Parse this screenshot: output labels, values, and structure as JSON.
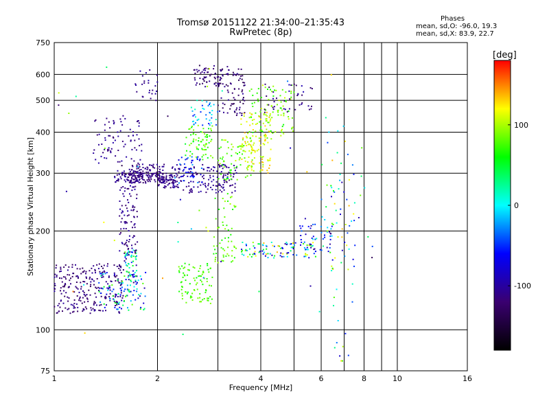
{
  "chart_data": {
    "type": "scatter",
    "title": "Tromsø 20151122 21:34:00–21:35:43",
    "subtitle": "RwPretec (8p)",
    "xlabel": "Frequency [MHz]",
    "ylabel": "Stationary phase Virtual Height [km]",
    "x_scale": "log",
    "y_scale": "log",
    "xlim": [
      1,
      16
    ],
    "ylim": [
      75,
      750
    ],
    "x_ticks": [
      1,
      2,
      4,
      6,
      8,
      10,
      16
    ],
    "y_ticks": [
      75,
      100,
      200,
      300,
      400,
      500,
      600,
      750
    ],
    "x_minor_lines": [
      3,
      5,
      7,
      9
    ],
    "grid": true,
    "colorbar": {
      "label": "[deg]",
      "ticks": [
        100,
        0,
        -100
      ],
      "range": [
        -180,
        180
      ],
      "colors": [
        "#000000",
        "#3a0070",
        "#0000ff",
        "#00ffff",
        "#00ff00",
        "#ffff00",
        "#ff0000"
      ]
    },
    "phase_stats": {
      "heading": "Phases",
      "o_line": "mean, sd,O: -96.0, 19.3",
      "x_line": "mean, sd,X:  83.9, 22.7"
    },
    "clusters": [
      {
        "f": [
          1.0,
          1.6
        ],
        "h": [
          112,
          160
        ],
        "phase": [
          -130,
          -100
        ],
        "n": 260
      },
      {
        "f": [
          1.35,
          1.85
        ],
        "h": [
          115,
          150
        ],
        "phase": [
          -120,
          80
        ],
        "n": 90
      },
      {
        "f": [
          1.6,
          1.75
        ],
        "h": [
          130,
          175
        ],
        "phase": [
          -110,
          90
        ],
        "n": 70
      },
      {
        "f": [
          1.55,
          1.75
        ],
        "h": [
          170,
          280
        ],
        "phase": [
          -125,
          -95
        ],
        "n": 90
      },
      {
        "f": [
          1.5,
          1.9
        ],
        "h": [
          280,
          305
        ],
        "phase": [
          -125,
          -95
        ],
        "n": 90
      },
      {
        "f": [
          1.65,
          2.1
        ],
        "h": [
          280,
          320
        ],
        "phase": [
          -125,
          -100
        ],
        "n": 120
      },
      {
        "f": [
          1.3,
          1.8
        ],
        "h": [
          320,
          450
        ],
        "phase": [
          -120,
          -95
        ],
        "n": 80
      },
      {
        "f": [
          1.7,
          2.0
        ],
        "h": [
          500,
          620
        ],
        "phase": [
          -115,
          -95
        ],
        "n": 25
      },
      {
        "f": [
          2.0,
          2.3
        ],
        "h": [
          270,
          300
        ],
        "phase": [
          -120,
          -100
        ],
        "n": 70
      },
      {
        "f": [
          2.3,
          2.9
        ],
        "h": [
          120,
          160
        ],
        "phase": [
          60,
          90
        ],
        "n": 90
      },
      {
        "f": [
          2.2,
          3.4
        ],
        "h": [
          260,
          320
        ],
        "phase": [
          -120,
          -95
        ],
        "n": 150
      },
      {
        "f": [
          2.3,
          2.7
        ],
        "h": [
          280,
          340
        ],
        "phase": [
          -90,
          -20
        ],
        "n": 40
      },
      {
        "f": [
          2.4,
          2.9
        ],
        "h": [
          330,
          420
        ],
        "phase": [
          50,
          100
        ],
        "n": 70
      },
      {
        "f": [
          2.5,
          3.0
        ],
        "h": [
          420,
          500
        ],
        "phase": [
          -60,
          20
        ],
        "n": 40
      },
      {
        "f": [
          2.5,
          3.2
        ],
        "h": [
          550,
          640
        ],
        "phase": [
          -140,
          -100
        ],
        "n": 60
      },
      {
        "f": [
          2.9,
          3.4
        ],
        "h": [
          160,
          260
        ],
        "phase": [
          60,
          100
        ],
        "n": 60
      },
      {
        "f": [
          3.0,
          3.6
        ],
        "h": [
          450,
          630
        ],
        "phase": [
          -140,
          -100
        ],
        "n": 80
      },
      {
        "f": [
          3.0,
          3.8
        ],
        "h": [
          280,
          380
        ],
        "phase": [
          60,
          110
        ],
        "n": 70
      },
      {
        "f": [
          3.5,
          4.3
        ],
        "h": [
          300,
          460
        ],
        "phase": [
          90,
          140
        ],
        "n": 120
      },
      {
        "f": [
          3.7,
          5.0
        ],
        "h": [
          380,
          560
        ],
        "phase": [
          60,
          110
        ],
        "n": 100
      },
      {
        "f": [
          4.1,
          5.7
        ],
        "h": [
          450,
          560
        ],
        "phase": [
          -130,
          -90
        ],
        "n": 40
      },
      {
        "f": [
          3.5,
          5.8
        ],
        "h": [
          165,
          185
        ],
        "phase": [
          -110,
          140
        ],
        "n": 100
      },
      {
        "f": [
          5.2,
          6.5
        ],
        "h": [
          170,
          210
        ],
        "phase": [
          -110,
          20
        ],
        "n": 40
      },
      {
        "f": [
          6.0,
          7.5
        ],
        "h": [
          150,
          330
        ],
        "phase": [
          -120,
          140
        ],
        "n": 50
      },
      {
        "f": [
          6.5,
          8.0
        ],
        "h": [
          80,
          420
        ],
        "phase": [
          -100,
          150
        ],
        "n": 30
      },
      {
        "f": [
          1.0,
          8.5
        ],
        "h": [
          95,
          650
        ],
        "phase": [
          -150,
          150
        ],
        "n": 60
      }
    ]
  }
}
